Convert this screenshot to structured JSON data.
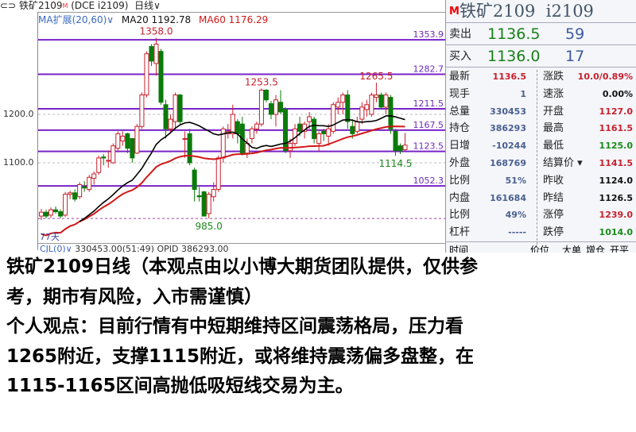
{
  "window": {
    "title": "铁矿2109",
    "badge": "M",
    "code": "(DCE i2109)",
    "period": "日线"
  },
  "indicator": {
    "name": "MA扩展(20,60)",
    "ma20": "MA20 1192.78",
    "ma60": "MA60 1176.29"
  },
  "axis": {
    "ticks": [
      "1200.0",
      "1100.0"
    ],
    "days_label": "77天"
  },
  "levels": [
    {
      "label": "1353.9",
      "value": 1353.9
    },
    {
      "label": "1282.7",
      "value": 1282.7
    },
    {
      "label": "1211.5",
      "value": 1211.5
    },
    {
      "label": "1167.5",
      "value": 1167.5
    },
    {
      "label": "1123.5",
      "value": 1123.5
    },
    {
      "label": "1052.3",
      "value": 1052.3
    }
  ],
  "annotations": [
    {
      "label": "1358.0",
      "value": 1358.0,
      "index": 24,
      "color": "#c8202c"
    },
    {
      "label": "1253.5",
      "value": 1253.5,
      "index": 46,
      "color": "#c8202c"
    },
    {
      "label": "1265.5",
      "value": 1265.5,
      "index": 70,
      "color": "#c8202c"
    },
    {
      "label": "985.0",
      "value": 985.0,
      "index": 35,
      "color": "#1a8a1a"
    },
    {
      "label": "1114.5",
      "value": 1114.5,
      "index": 74,
      "color": "#1a8a1a"
    }
  ],
  "volume_bar": {
    "name": "CJL(0)",
    "value": "330453.00(51:49)",
    "opid": "OPID 386293.00"
  },
  "chart_data": {
    "type": "candlestick",
    "ylim": [
      970,
      1370
    ],
    "grid_lines": [
      1200,
      1100,
      985
    ],
    "colors": {
      "up": "#c8202c",
      "down": "#0a7a0a",
      "ma20": "#000000",
      "ma60": "#d01818",
      "level": "#7a22c8"
    },
    "ohlc": [
      [
        990,
        1005,
        982,
        998
      ],
      [
        998,
        1003,
        985,
        990
      ],
      [
        992,
        1008,
        986,
        1003
      ],
      [
        1003,
        1010,
        995,
        999
      ],
      [
        999,
        1004,
        985,
        990
      ],
      [
        992,
        1040,
        988,
        1035
      ],
      [
        1035,
        1042,
        1025,
        1038
      ],
      [
        1038,
        1045,
        1020,
        1025
      ],
      [
        1030,
        1060,
        1025,
        1055
      ],
      [
        1050,
        1062,
        1040,
        1048
      ],
      [
        1045,
        1075,
        1040,
        1070
      ],
      [
        1068,
        1082,
        1055,
        1077
      ],
      [
        1080,
        1115,
        1075,
        1110
      ],
      [
        1112,
        1118,
        1095,
        1110
      ],
      [
        1105,
        1125,
        1090,
        1105
      ],
      [
        1100,
        1140,
        1098,
        1135
      ],
      [
        1130,
        1165,
        1125,
        1160
      ],
      [
        1145,
        1165,
        1135,
        1155
      ],
      [
        1160,
        1162,
        1120,
        1130
      ],
      [
        1150,
        1150,
        1100,
        1110
      ],
      [
        1120,
        1180,
        1118,
        1175
      ],
      [
        1175,
        1245,
        1170,
        1240
      ],
      [
        1240,
        1330,
        1235,
        1325
      ],
      [
        1340,
        1345,
        1300,
        1310
      ],
      [
        1305,
        1358,
        1280,
        1345
      ],
      [
        1330,
        1335,
        1220,
        1225
      ],
      [
        1220,
        1230,
        1150,
        1170
      ],
      [
        1170,
        1200,
        1160,
        1190
      ],
      [
        1185,
        1245,
        1170,
        1240
      ],
      [
        1240,
        1242,
        1180,
        1185
      ],
      [
        1150,
        1165,
        1110,
        1150
      ],
      [
        1160,
        1170,
        1095,
        1100
      ],
      [
        1085,
        1090,
        1020,
        1045
      ],
      [
        1032,
        1050,
        1020,
        1030
      ],
      [
        1040,
        1042,
        990,
        990
      ],
      [
        995,
        1040,
        985,
        1035
      ],
      [
        1030,
        1060,
        1020,
        1045
      ],
      [
        1045,
        1115,
        1040,
        1110
      ],
      [
        1110,
        1175,
        1100,
        1170
      ],
      [
        1160,
        1180,
        1150,
        1165
      ],
      [
        1160,
        1220,
        1150,
        1200
      ],
      [
        1185,
        1190,
        1140,
        1160
      ],
      [
        1180,
        1195,
        1115,
        1120
      ],
      [
        1120,
        1150,
        1110,
        1140
      ],
      [
        1150,
        1175,
        1140,
        1170
      ],
      [
        1170,
        1185,
        1160,
        1180
      ],
      [
        1180,
        1253.5,
        1175,
        1250
      ],
      [
        1250,
        1252,
        1225,
        1230
      ],
      [
        1222,
        1228,
        1190,
        1200
      ],
      [
        1200,
        1240,
        1175,
        1230
      ],
      [
        1225,
        1250,
        1200,
        1205
      ],
      [
        1210,
        1215,
        1120,
        1125
      ],
      [
        1125,
        1150,
        1110,
        1140
      ],
      [
        1140,
        1180,
        1135,
        1170
      ],
      [
        1180,
        1195,
        1155,
        1165
      ],
      [
        1165,
        1185,
        1150,
        1180
      ],
      [
        1185,
        1205,
        1170,
        1195
      ],
      [
        1190,
        1195,
        1140,
        1150
      ],
      [
        1140,
        1165,
        1125,
        1160
      ],
      [
        1165,
        1170,
        1145,
        1160
      ],
      [
        1155,
        1180,
        1135,
        1170
      ],
      [
        1165,
        1225,
        1160,
        1220
      ],
      [
        1215,
        1235,
        1200,
        1225
      ],
      [
        1225,
        1245,
        1200,
        1240
      ],
      [
        1240,
        1250,
        1170,
        1185
      ],
      [
        1175,
        1190,
        1150,
        1160
      ],
      [
        1165,
        1195,
        1160,
        1185
      ],
      [
        1190,
        1225,
        1180,
        1215
      ],
      [
        1210,
        1230,
        1195,
        1220
      ],
      [
        1200,
        1245,
        1195,
        1240
      ],
      [
        1235,
        1265.5,
        1225,
        1240
      ],
      [
        1240,
        1245,
        1210,
        1215
      ],
      [
        1215,
        1245,
        1200,
        1240
      ],
      [
        1235,
        1240,
        1160,
        1170
      ],
      [
        1165,
        1170,
        1114.5,
        1125
      ],
      [
        1135,
        1140,
        1118,
        1125
      ],
      [
        1127,
        1161.5,
        1125,
        1136.5
      ]
    ]
  },
  "quote": {
    "badge": "M",
    "name": "铁矿2109",
    "code": "i2109",
    "sell": {
      "label": "卖出",
      "price": "1136.5",
      "qty": "59"
    },
    "buy": {
      "label": "买入",
      "price": "1136.0",
      "qty": "17"
    },
    "rows": [
      {
        "k1": "最新",
        "v1": "1136.5",
        "c1": "red",
        "k2": "涨跌",
        "v2": "10.0/0.89%",
        "c2": "red"
      },
      {
        "k1": "现手",
        "v1": "1",
        "c1": "blue",
        "k2": "速涨",
        "v2": "0.00%",
        "c2": "black"
      },
      {
        "k1": "总量",
        "v1": "330453",
        "c1": "blue",
        "k2": "开盘",
        "v2": "1127.0",
        "c2": "red"
      },
      {
        "k1": "持仓",
        "v1": "386293",
        "c1": "blue",
        "k2": "最高",
        "v2": "1161.5",
        "c2": "red"
      },
      {
        "k1": "日增",
        "v1": "-10244",
        "c1": "blue",
        "k2": "最低",
        "v2": "1125.0",
        "c2": "green"
      },
      {
        "k1": "外盘",
        "v1": "168769",
        "c1": "blue",
        "k2": "结算价 ▾",
        "v2": "1141.5",
        "c2": "red"
      },
      {
        "k1": "比例",
        "v1": "51%",
        "c1": "blue",
        "k2": "昨收",
        "v2": "1124.0",
        "c2": "black"
      },
      {
        "k1": "内盘",
        "v1": "161684",
        "c1": "blue",
        "k2": "昨结",
        "v2": "1126.5",
        "c2": "black"
      },
      {
        "k1": "比例",
        "v1": "49%",
        "c1": "blue",
        "k2": "涨停",
        "v2": "1239.0",
        "c2": "red"
      },
      {
        "k1": "杠杆",
        "v1": "-----",
        "c1": "blue",
        "k2": "跌停",
        "v2": "1014.0",
        "c2": "green"
      }
    ],
    "ticks_header": [
      "时间",
      "价位",
      "大单",
      "增仓",
      "开平"
    ]
  },
  "note": {
    "lines": [
      "铁矿2109日线（本观点由以小博大期货团队提供，仅供参",
      "考，期市有风险，入市需谨慎）",
      "个人观点：目前行情有中短期维持区间震荡格局，压力看",
      "1265附近，支撑1115附近，或将维持震荡偏多盘整，在",
      "1115-1165区间高抛低吸短线交易为主。"
    ]
  }
}
